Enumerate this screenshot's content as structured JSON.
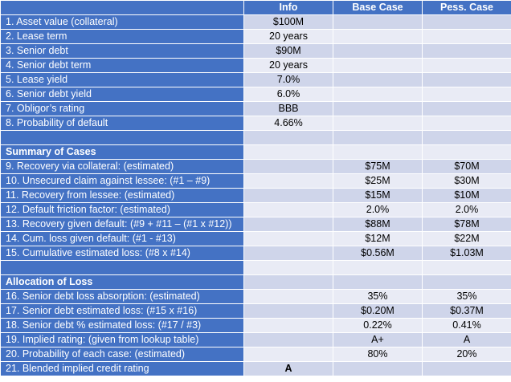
{
  "header": {
    "label": "",
    "info": "Info",
    "base": "Base Case",
    "pess": "Pess. Case"
  },
  "rows": [
    {
      "type": "data",
      "label": "1. Asset value (collateral)",
      "info": "$100M",
      "base": "",
      "pess": ""
    },
    {
      "type": "data",
      "label": "2. Lease term",
      "info": "20 years",
      "base": "",
      "pess": ""
    },
    {
      "type": "data",
      "label": "3. Senior debt",
      "info": "$90M",
      "base": "",
      "pess": ""
    },
    {
      "type": "data",
      "label": "4. Senior debt term",
      "info": "20 years",
      "base": "",
      "pess": ""
    },
    {
      "type": "data",
      "label": "5. Lease yield",
      "info": "7.0%",
      "base": "",
      "pess": ""
    },
    {
      "type": "data",
      "label": "6. Senior debt yield",
      "info": "6.0%",
      "base": "",
      "pess": ""
    },
    {
      "type": "data",
      "label": "7. Obligor’s rating",
      "info": "BBB",
      "base": "",
      "pess": ""
    },
    {
      "type": "data",
      "label": "8. Probability of default",
      "info": "4.66%",
      "base": "",
      "pess": ""
    },
    {
      "type": "blank",
      "label": "",
      "info": "",
      "base": "",
      "pess": ""
    },
    {
      "type": "section",
      "label": "Summary of Cases",
      "info": "",
      "base": "",
      "pess": ""
    },
    {
      "type": "data",
      "label": "9. Recovery via collateral: (estimated)",
      "info": "",
      "base": "$75M",
      "pess": "$70M"
    },
    {
      "type": "data",
      "label": "10. Unsecured claim against lessee: (#1 – #9)",
      "info": "",
      "base": "$25M",
      "pess": "$30M"
    },
    {
      "type": "data",
      "label": "11. Recovery from lessee: (estimated)",
      "info": "",
      "base": "$15M",
      "pess": "$10M"
    },
    {
      "type": "data",
      "label": "12. Default friction factor: (estimated)",
      "info": "",
      "base": "2.0%",
      "pess": "2.0%"
    },
    {
      "type": "data",
      "label": "13. Recovery given default: (#9 + #11 – (#1 x #12))",
      "info": "",
      "base": "$88M",
      "pess": "$78M"
    },
    {
      "type": "data",
      "label": "14. Cum. loss given default: (#1 - #13)",
      "info": "",
      "base": "$12M",
      "pess": "$22M"
    },
    {
      "type": "data",
      "label": "15. Cumulative estimated loss: (#8 x #14)",
      "info": "",
      "base": "$0.56M",
      "pess": "$1.03M"
    },
    {
      "type": "blank",
      "label": "",
      "info": "",
      "base": "",
      "pess": ""
    },
    {
      "type": "section",
      "label": "Allocation of Loss",
      "info": "",
      "base": "",
      "pess": ""
    },
    {
      "type": "data",
      "label": "16. Senior debt loss absorption: (estimated)",
      "info": "",
      "base": "35%",
      "pess": "35%"
    },
    {
      "type": "data",
      "label": "17. Senior debt estimated loss: (#15 x #16)",
      "info": "",
      "base": "$0.20M",
      "pess": "$0.37M"
    },
    {
      "type": "data",
      "label": "18. Senior debt % estimated loss: (#17 / #3)",
      "info": "",
      "base": "0.22%",
      "pess": "0.41%"
    },
    {
      "type": "data",
      "label": "19. Implied rating: (given from lookup table)",
      "info": "",
      "base": "A+",
      "pess": "A"
    },
    {
      "type": "data",
      "label": "20. Probability of each case: (estimated)",
      "info": "",
      "base": "80%",
      "pess": "20%"
    },
    {
      "type": "data",
      "label": "21. Blended implied credit rating",
      "info": "A",
      "base": "",
      "pess": "",
      "bold_info": true
    }
  ],
  "colors": {
    "header_blue": "#4472c4",
    "band_dark": "#cfd5ea",
    "band_light": "#e9ebf5"
  }
}
